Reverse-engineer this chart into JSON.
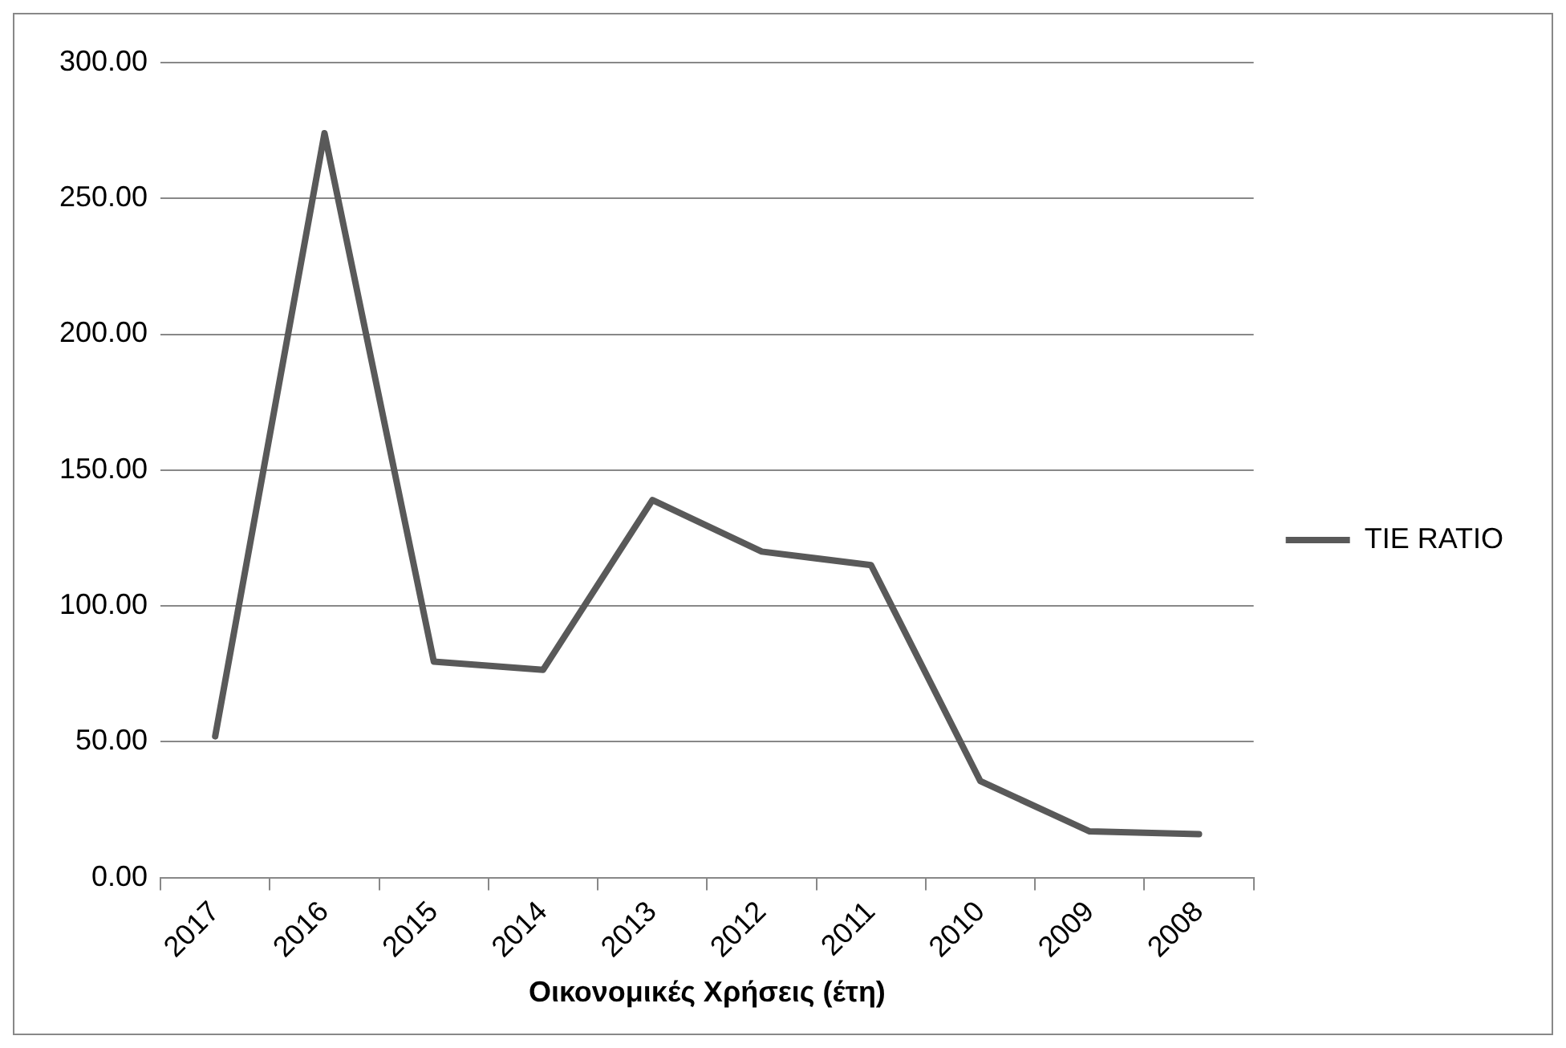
{
  "chart_data": {
    "type": "line",
    "categories": [
      "2017",
      "2016",
      "2015",
      "2014",
      "2013",
      "2012",
      "2011",
      "2010",
      "2009",
      "2008"
    ],
    "series": [
      {
        "name": "TIE RATIO",
        "color": "#595959",
        "values": [
          52,
          274,
          79.5,
          76.5,
          139,
          120,
          115,
          35.5,
          17,
          16
        ]
      }
    ],
    "xlabel": "Οικονομικές Χρήσεις (έτη)",
    "ylim": [
      0,
      300
    ],
    "yticks": [
      {
        "value": 0,
        "label": "0.00"
      },
      {
        "value": 50,
        "label": "50.00"
      },
      {
        "value": 100,
        "label": "100.00"
      },
      {
        "value": 150,
        "label": "150.00"
      },
      {
        "value": 200,
        "label": "200.00"
      },
      {
        "value": 250,
        "label": "250.00"
      },
      {
        "value": 300,
        "label": "300.00"
      }
    ],
    "grid": "y",
    "legend": "right",
    "marker": "none",
    "line_style": "solid"
  }
}
